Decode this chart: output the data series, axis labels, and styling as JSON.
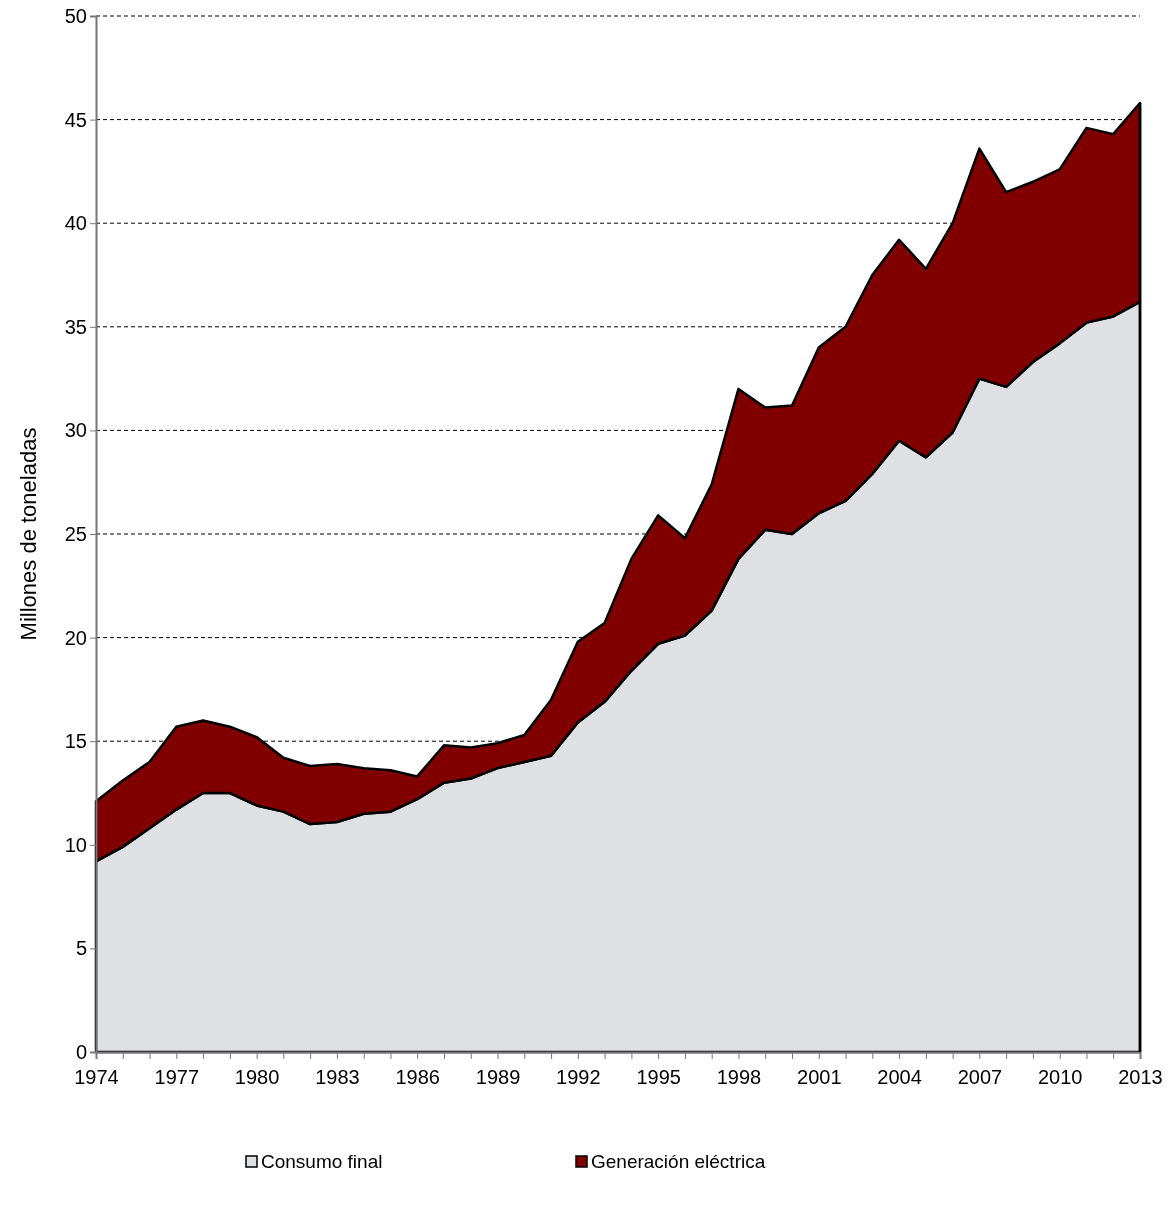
{
  "chart_data": {
    "type": "area",
    "stacked": true,
    "ylabel": "Millones de toneladas",
    "x": [
      1974,
      1975,
      1976,
      1977,
      1978,
      1979,
      1980,
      1981,
      1982,
      1983,
      1984,
      1985,
      1986,
      1987,
      1988,
      1989,
      1990,
      1991,
      1992,
      1993,
      1994,
      1995,
      1996,
      1997,
      1998,
      1999,
      2000,
      2001,
      2002,
      2003,
      2004,
      2005,
      2006,
      2007,
      2008,
      2009,
      2010,
      2011,
      2012,
      2013
    ],
    "series": [
      {
        "name": "Consumo final",
        "color": "#dfe0e4",
        "values": [
          9.2,
          9.9,
          10.8,
          11.7,
          12.5,
          12.5,
          11.9,
          11.6,
          11.0,
          11.1,
          11.5,
          11.6,
          12.2,
          13.0,
          13.2,
          13.7,
          14.0,
          14.3,
          15.9,
          16.9,
          18.4,
          19.7,
          20.1,
          21.3,
          23.8,
          25.2,
          25.0,
          26.0,
          26.6,
          27.9,
          29.5,
          28.7,
          29.9,
          32.5,
          32.1,
          33.3,
          34.2,
          35.2,
          35.5,
          36.2
        ]
      },
      {
        "name": "Generación eléctrica",
        "color": "#800000",
        "values": [
          2.9,
          3.2,
          3.2,
          4.0,
          3.5,
          3.2,
          3.3,
          2.6,
          2.8,
          2.8,
          2.2,
          2.0,
          1.1,
          1.8,
          1.5,
          1.2,
          1.3,
          2.7,
          3.9,
          3.8,
          5.4,
          6.2,
          4.7,
          6.1,
          8.2,
          5.9,
          6.2,
          8.0,
          8.4,
          9.6,
          9.7,
          9.1,
          10.1,
          11.1,
          9.4,
          8.7,
          8.4,
          9.4,
          8.8,
          9.6
        ]
      }
    ],
    "xlim": [
      1974,
      2013
    ],
    "xticks": [
      1974,
      {
        "value": 1975,
        "label": null
      },
      {
        "value": 1976,
        "label": null
      },
      1977,
      {
        "value": 1978,
        "label": null
      },
      {
        "value": 1979,
        "label": null
      },
      1980,
      {
        "value": 1981,
        "label": null
      },
      {
        "value": 1982,
        "label": null
      },
      1983,
      {
        "value": 1984,
        "label": null
      },
      {
        "value": 1985,
        "label": null
      },
      1986,
      {
        "value": 1987,
        "label": null
      },
      {
        "value": 1988,
        "label": null
      },
      1989,
      {
        "value": 1990,
        "label": null
      },
      {
        "value": 1991,
        "label": null
      },
      1992,
      {
        "value": 1993,
        "label": null
      },
      {
        "value": 1994,
        "label": null
      },
      1995,
      {
        "value": 1996,
        "label": null
      },
      {
        "value": 1997,
        "label": null
      },
      1998,
      {
        "value": 1999,
        "label": null
      },
      {
        "value": 2000,
        "label": null
      },
      2001,
      {
        "value": 2002,
        "label": null
      },
      {
        "value": 2003,
        "label": null
      },
      2004,
      {
        "value": 2005,
        "label": null
      },
      {
        "value": 2006,
        "label": null
      },
      2007,
      {
        "value": 2008,
        "label": null
      },
      {
        "value": 2009,
        "label": null
      },
      2010,
      {
        "value": 2011,
        "label": null
      },
      {
        "value": 2012,
        "label": null
      },
      2013
    ],
    "ylim": [
      0,
      50
    ],
    "yticks": [
      0,
      5,
      10,
      15,
      20,
      25,
      30,
      35,
      40,
      45,
      50
    ],
    "grid": "y",
    "legend": "bottom"
  }
}
